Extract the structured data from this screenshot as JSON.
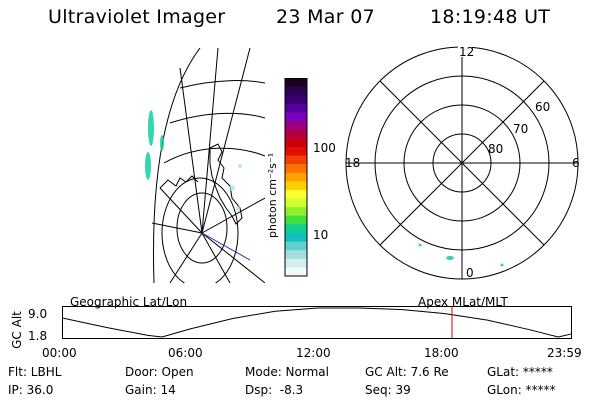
{
  "header": {
    "instrument": "Ultraviolet Imager",
    "date": "23 Mar 07",
    "time": "18:19:48 UT"
  },
  "geo_panel": {
    "label": "Geographic Lat/Lon"
  },
  "polar_panel": {
    "label": "Apex MLat/MLT",
    "mlt_labels": [
      "12",
      "18",
      "6",
      "0"
    ],
    "lat_labels": [
      "60",
      "70",
      "80"
    ]
  },
  "colorbar": {
    "unit": "photon cm⁻²s⁻¹",
    "tick_labels": [
      "100",
      "10"
    ],
    "colors": [
      "#1a0020",
      "#2a0050",
      "#3a0070",
      "#55009a",
      "#7a00c0",
      "#9a0080",
      "#b00040",
      "#c80010",
      "#e01000",
      "#f04000",
      "#ff7000",
      "#ffa000",
      "#ffd000",
      "#ffff30",
      "#d0ff30",
      "#90f030",
      "#40e040",
      "#10d090",
      "#10c0c0",
      "#60d0d0",
      "#a0e0e0",
      "#d0eeee",
      "#f0f8f8"
    ]
  },
  "orbit": {
    "axis_label": "GC Alt",
    "y_ticks": [
      "9.0",
      "1.8"
    ],
    "x_ticks": [
      "00:00",
      "06:00",
      "12:00",
      "18:00",
      "23:59"
    ],
    "marker_color": "#e00000"
  },
  "status": {
    "flt": "Flt: LBHL",
    "ip": "IP: 36.0",
    "door": "Door: Open",
    "gain": "Gain: 14",
    "mode": "Mode: Normal",
    "dsp": "Dsp:  -8.3",
    "gcalt": "GC Alt: 7.6 Re",
    "seq": "Seq: 39",
    "glat": "GLat: *****",
    "glon": "GLon: *****"
  },
  "chart_data": {
    "type": "line",
    "title": "",
    "xlabel": "",
    "ylabel": "GC Alt",
    "xlim": [
      "00:00",
      "23:59"
    ],
    "ylim": [
      1.8,
      9.0
    ],
    "x": [
      "00:00",
      "02:00",
      "04:00",
      "04:40",
      "06:00",
      "08:00",
      "10:00",
      "12:00",
      "14:00",
      "16:00",
      "18:00",
      "20:00",
      "22:00",
      "23:20",
      "23:59"
    ],
    "series": [
      {
        "values": [
          6.5,
          4.2,
          2.2,
          1.8,
          3.8,
          6.4,
          8.2,
          9.0,
          9.0,
          8.6,
          7.6,
          6.0,
          3.6,
          1.8,
          2.6
        ]
      }
    ],
    "marker_time": "18:19:48"
  }
}
